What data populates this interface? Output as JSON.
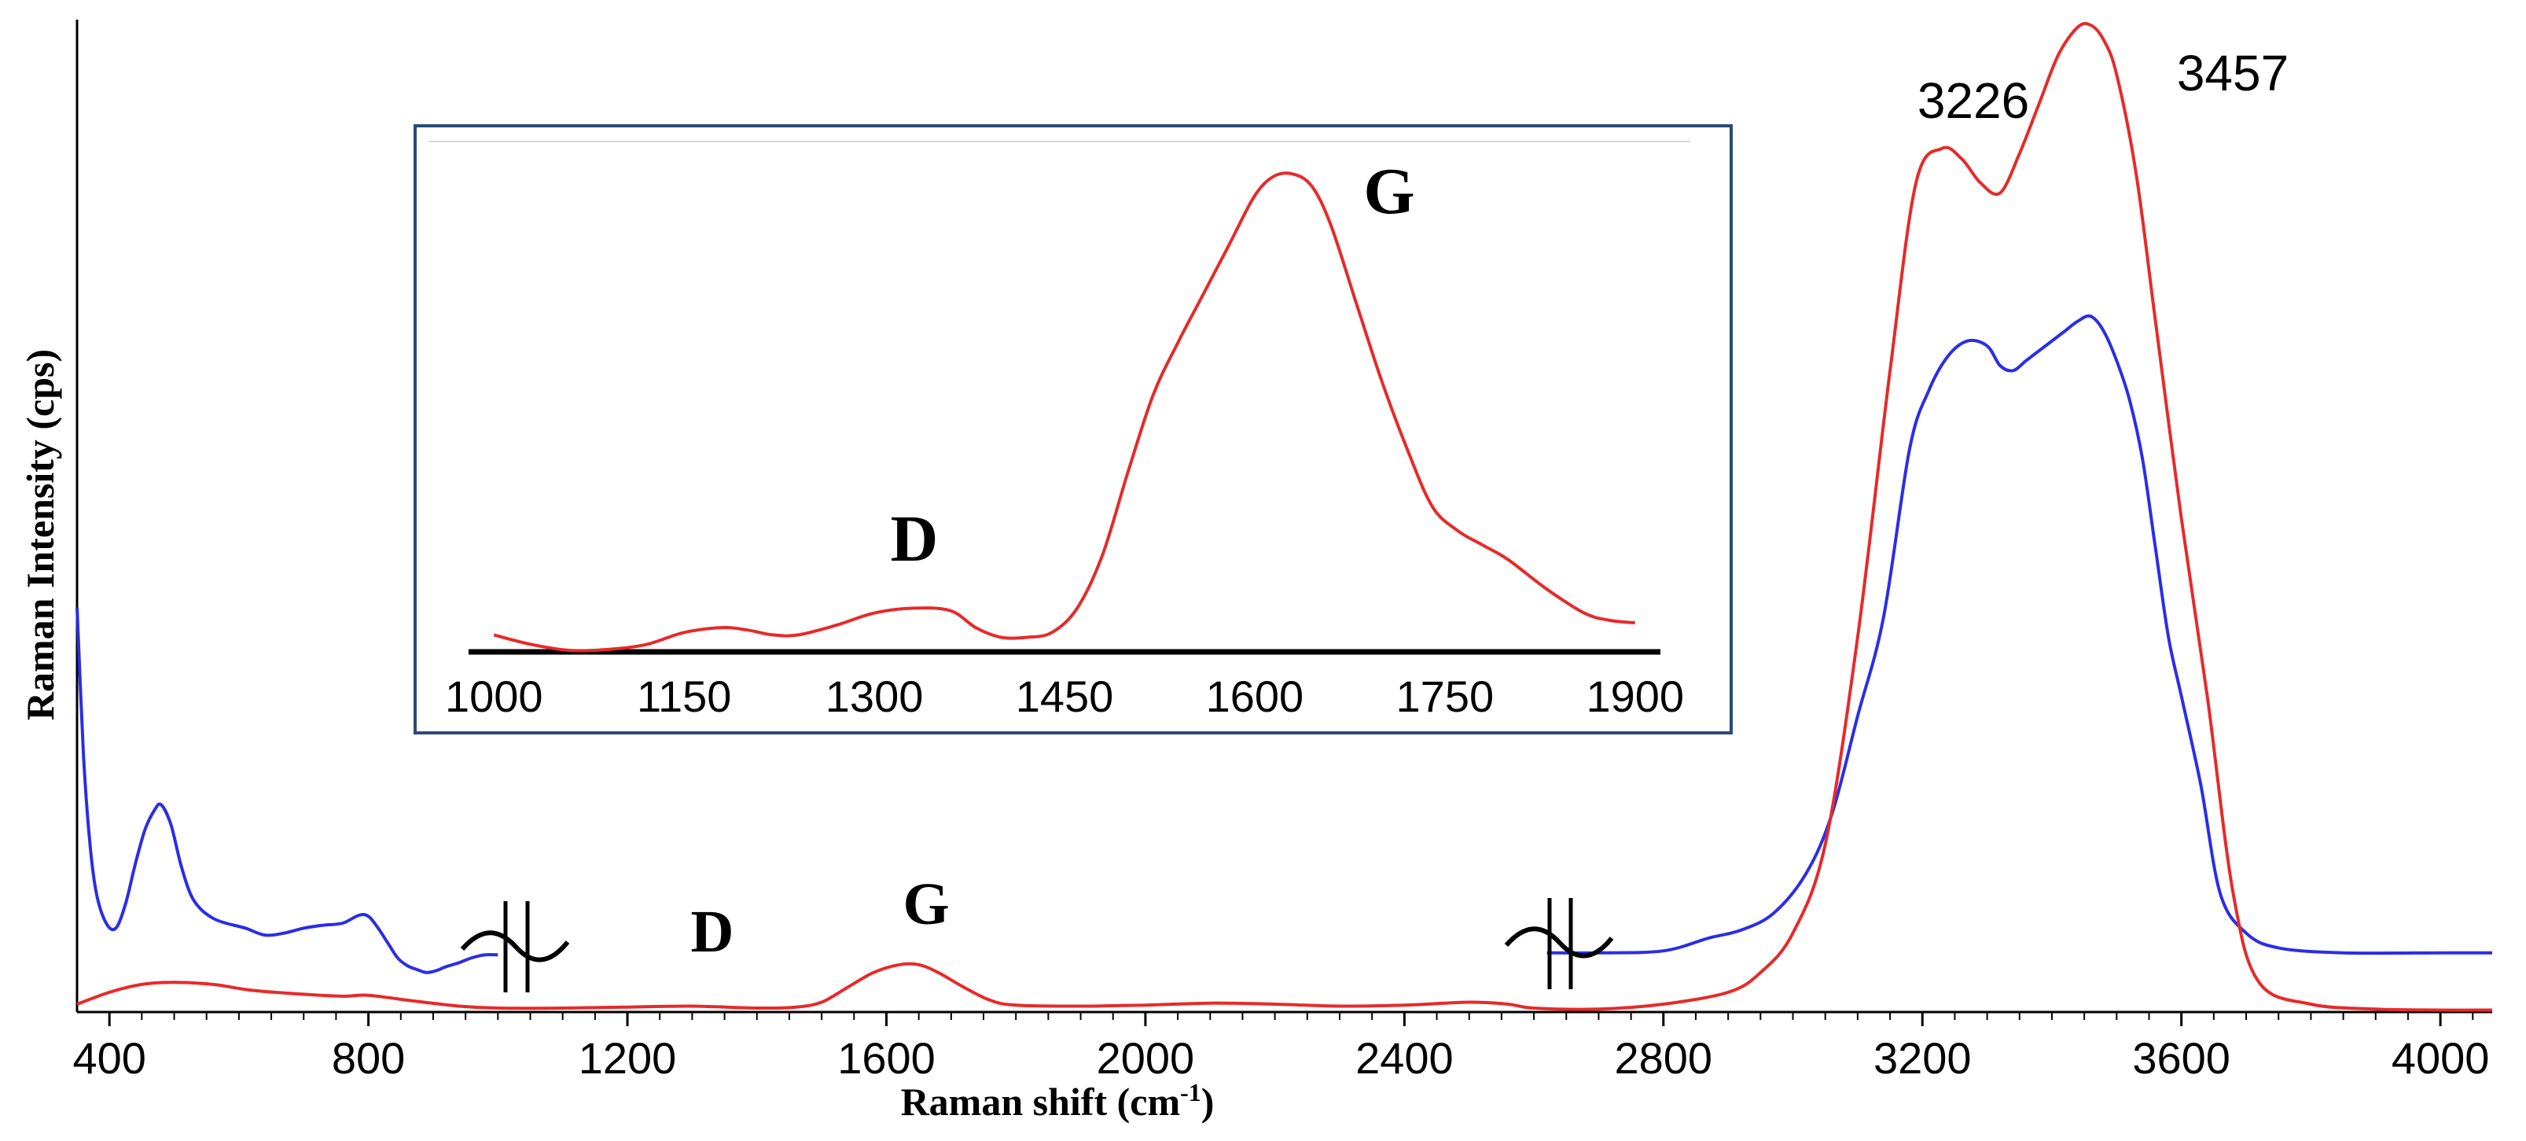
{
  "chart_data": {
    "type": "line",
    "xlabel_main": "Raman shift (cm",
    "xlabel_sup": "-1",
    "xlabel_close": ")",
    "ylabel": "Raman Intensity (cps)",
    "xlim": [
      350,
      4080
    ],
    "ylim": [
      0,
      1.0
    ],
    "xticks": [
      400,
      800,
      1200,
      1600,
      2000,
      2400,
      2800,
      3200,
      3600,
      4000
    ],
    "tick_labels": [
      "400",
      "800",
      "1200",
      "1600",
      "2000",
      "2400",
      "2800",
      "3200",
      "3600",
      "4000"
    ],
    "series": [
      {
        "name": "blue-spectrum-low",
        "color": "#2a2ee6",
        "x": [
          350,
          360,
          370,
          380,
          395,
          410,
          425,
          440,
          455,
          470,
          480,
          495,
          510,
          525,
          540,
          560,
          580,
          610,
          640,
          670,
          700,
          730,
          760,
          785,
          800,
          815,
          830,
          845,
          860,
          875,
          890,
          905,
          920,
          940,
          960,
          980,
          1000
        ],
        "y": [
          0.41,
          0.26,
          0.17,
          0.12,
          0.09,
          0.085,
          0.11,
          0.15,
          0.185,
          0.205,
          0.21,
          0.19,
          0.15,
          0.12,
          0.105,
          0.095,
          0.09,
          0.085,
          0.078,
          0.08,
          0.085,
          0.088,
          0.09,
          0.098,
          0.097,
          0.085,
          0.07,
          0.055,
          0.047,
          0.043,
          0.04,
          0.042,
          0.046,
          0.05,
          0.055,
          0.058,
          0.058
        ]
      },
      {
        "name": "blue-spectrum-high",
        "color": "#2a2ee6",
        "x": [
          2620,
          2700,
          2800,
          2870,
          2920,
          2970,
          3020,
          3060,
          3100,
          3140,
          3180,
          3210,
          3240,
          3270,
          3300,
          3320,
          3340,
          3360,
          3380,
          3400,
          3420,
          3440,
          3460,
          3480,
          3500,
          3520,
          3540,
          3560,
          3580,
          3600,
          3630,
          3660,
          3700,
          3750,
          3850,
          4000,
          4080
        ],
        "y": [
          0.06,
          0.06,
          0.062,
          0.075,
          0.083,
          0.1,
          0.14,
          0.2,
          0.3,
          0.4,
          0.57,
          0.63,
          0.665,
          0.68,
          0.675,
          0.655,
          0.65,
          0.66,
          0.67,
          0.68,
          0.69,
          0.7,
          0.705,
          0.69,
          0.66,
          0.62,
          0.56,
          0.47,
          0.38,
          0.32,
          0.23,
          0.12,
          0.08,
          0.065,
          0.06,
          0.06,
          0.06
        ]
      },
      {
        "name": "red-spectrum",
        "color": "#e62a2a",
        "x": [
          350,
          400,
          450,
          500,
          560,
          620,
          700,
          760,
          800,
          860,
          940,
          1000,
          1100,
          1200,
          1300,
          1400,
          1460,
          1500,
          1540,
          1580,
          1620,
          1650,
          1680,
          1720,
          1760,
          1800,
          1900,
          2000,
          2100,
          2200,
          2300,
          2400,
          2500,
          2560,
          2600,
          2700,
          2800,
          2900,
          2950,
          3000,
          3050,
          3100,
          3150,
          3190,
          3230,
          3260,
          3290,
          3320,
          3350,
          3380,
          3410,
          3440,
          3460,
          3480,
          3500,
          3530,
          3560,
          3600,
          3640,
          3680,
          3720,
          3800,
          3900,
          4000,
          4080
        ],
        "y": [
          0.008,
          0.02,
          0.028,
          0.03,
          0.028,
          0.022,
          0.018,
          0.016,
          0.017,
          0.012,
          0.006,
          0.004,
          0.004,
          0.005,
          0.006,
          0.004,
          0.005,
          0.01,
          0.025,
          0.04,
          0.048,
          0.048,
          0.04,
          0.025,
          0.012,
          0.007,
          0.006,
          0.007,
          0.009,
          0.008,
          0.006,
          0.007,
          0.01,
          0.008,
          0.004,
          0.003,
          0.008,
          0.02,
          0.04,
          0.08,
          0.17,
          0.38,
          0.65,
          0.84,
          0.875,
          0.865,
          0.84,
          0.83,
          0.87,
          0.92,
          0.97,
          0.998,
          1.0,
          0.985,
          0.95,
          0.85,
          0.7,
          0.5,
          0.32,
          0.12,
          0.03,
          0.008,
          0.003,
          0.002,
          0.002
        ]
      }
    ],
    "annotations": {
      "peak_1": "3226",
      "peak_2": "3457",
      "band_d": "D",
      "band_g": "G"
    },
    "inset": {
      "xlim": [
        980,
        1920
      ],
      "ylim": [
        0,
        1.0
      ],
      "xticks": [
        1000,
        1150,
        1300,
        1450,
        1600,
        1750,
        1900
      ],
      "tick_labels": [
        "1000",
        "1150",
        "1300",
        "1450",
        "1600",
        "1750",
        "1900"
      ],
      "band_d": "D",
      "band_g": "G",
      "series": [
        {
          "name": "red-inset",
          "color": "#e62a2a",
          "x": [
            1000,
            1030,
            1060,
            1090,
            1120,
            1150,
            1180,
            1200,
            1220,
            1240,
            1270,
            1300,
            1330,
            1360,
            1380,
            1400,
            1420,
            1440,
            1460,
            1480,
            1500,
            1520,
            1540,
            1560,
            1580,
            1600,
            1615,
            1630,
            1645,
            1660,
            1680,
            1700,
            1720,
            1740,
            1760,
            1780,
            1800,
            1830,
            1860,
            1880,
            1900
          ],
          "y": [
            0.035,
            0.015,
            0.003,
            0.005,
            0.015,
            0.04,
            0.05,
            0.045,
            0.035,
            0.035,
            0.055,
            0.08,
            0.09,
            0.085,
            0.05,
            0.03,
            0.03,
            0.04,
            0.09,
            0.2,
            0.37,
            0.53,
            0.64,
            0.74,
            0.84,
            0.94,
            0.98,
            0.985,
            0.96,
            0.88,
            0.72,
            0.56,
            0.42,
            0.3,
            0.25,
            0.22,
            0.19,
            0.13,
            0.08,
            0.065,
            0.06
          ]
        }
      ]
    }
  }
}
